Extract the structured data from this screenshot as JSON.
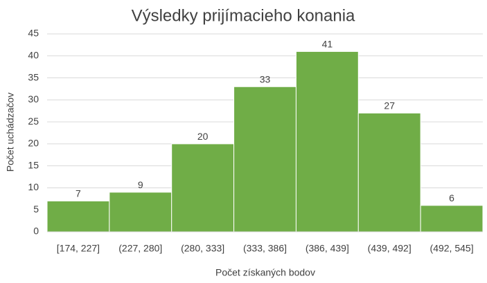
{
  "chart_data": {
    "type": "bar",
    "title": "Výsledky prijímacieho konania",
    "xlabel": "Počet získaných bodov",
    "ylabel": "Počet uchádzačov",
    "categories": [
      "[174, 227]",
      "(227, 280]",
      "(280, 333]",
      "(333, 386]",
      "(386, 439]",
      "(439, 492]",
      "(492, 545]"
    ],
    "values": [
      7,
      9,
      20,
      33,
      41,
      27,
      6
    ],
    "y_ticks": [
      "0",
      "5",
      "10",
      "15",
      "20",
      "25",
      "30",
      "35",
      "40",
      "45"
    ],
    "ylim": [
      0,
      45
    ],
    "grid": true,
    "data_labels": true,
    "bar_color": "#70ad47",
    "bar_border_color": "#ffffff"
  }
}
